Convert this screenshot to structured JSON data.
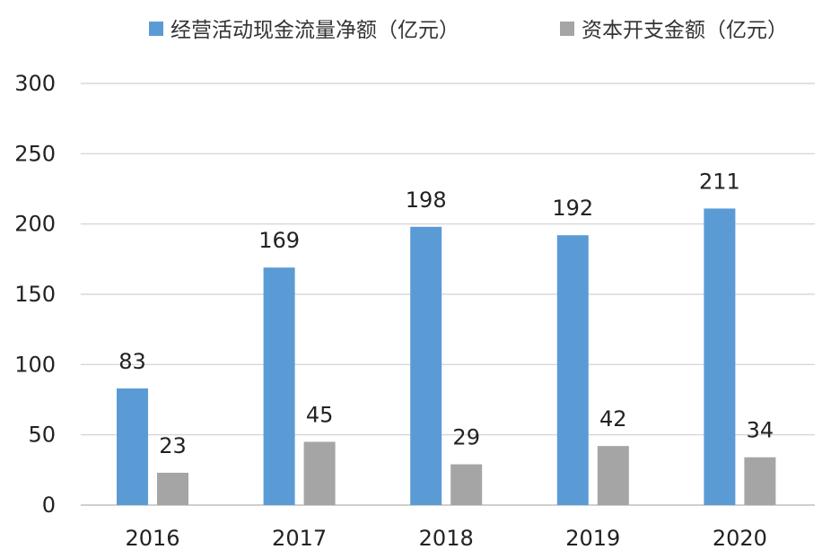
{
  "chart_data": {
    "type": "bar",
    "title": "",
    "xlabel": "",
    "ylabel": "",
    "categories": [
      "2016",
      "2017",
      "2018",
      "2019",
      "2020"
    ],
    "series": [
      {
        "name": "经营活动现金流量净额（亿元）",
        "color": "#5b9bd5",
        "values": [
          83,
          169,
          198,
          192,
          211
        ]
      },
      {
        "name": "资本开支金额（亿元）",
        "color": "#a5a5a5",
        "values": [
          23,
          45,
          29,
          42,
          34
        ]
      }
    ],
    "ylim": [
      0,
      300
    ],
    "yticks": [
      0,
      50,
      100,
      150,
      200,
      250,
      300
    ],
    "grid": true,
    "legend_position": "top",
    "data_labels": true
  }
}
